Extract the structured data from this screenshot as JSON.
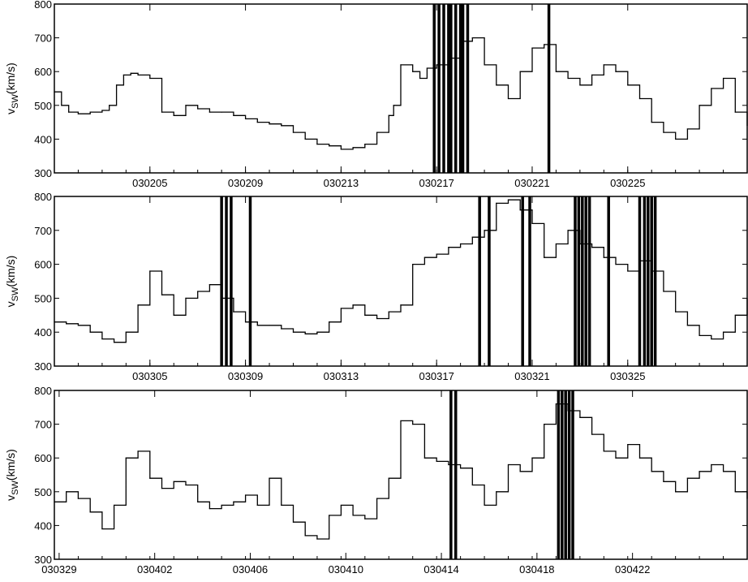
{
  "chart_data": [
    {
      "type": "line",
      "ylabel": "v_SW(km/s)",
      "ylabel_main": "v",
      "ylabel_sub": "SW",
      "ylabel_unit": "(km/s)",
      "ylim": [
        300,
        800
      ],
      "yticks": [
        300,
        400,
        500,
        600,
        700,
        800
      ],
      "x_range_days": [
        0,
        29
      ],
      "xtick_labels": [
        {
          "day": 4,
          "label": "030205"
        },
        {
          "day": 8,
          "label": "030209"
        },
        {
          "day": 12,
          "label": "030213"
        },
        {
          "day": 16,
          "label": "030217"
        },
        {
          "day": 20,
          "label": "030221"
        },
        {
          "day": 24,
          "label": "030225"
        }
      ],
      "series": [
        {
          "x": [
            0,
            0.3,
            0.6,
            1,
            1.5,
            2,
            2.3,
            2.6,
            2.9,
            3.2,
            3.5,
            4,
            4.5,
            5,
            5.5,
            6,
            6.5,
            7,
            7.5,
            8,
            8.5,
            9,
            9.5,
            10,
            10.5,
            11,
            11.5,
            12,
            12.5,
            13,
            13.5,
            14,
            14.2,
            14.5,
            15,
            15.3,
            15.6,
            16,
            16.5,
            17,
            17.5,
            18,
            18.5,
            19,
            19.5,
            20,
            20.5,
            21,
            21.5,
            22,
            22.5,
            23,
            23.5,
            24,
            24.5,
            25,
            25.5,
            26,
            26.5,
            27,
            27.5,
            28,
            28.5,
            29
          ],
          "y": [
            540,
            500,
            480,
            475,
            480,
            485,
            500,
            560,
            590,
            595,
            590,
            580,
            480,
            470,
            500,
            490,
            480,
            480,
            470,
            460,
            450,
            445,
            440,
            420,
            400,
            385,
            380,
            370,
            375,
            385,
            420,
            470,
            500,
            620,
            600,
            580,
            610,
            620,
            640,
            690,
            700,
            620,
            560,
            520,
            600,
            670,
            680,
            600,
            580,
            560,
            590,
            620,
            600,
            560,
            520,
            450,
            420,
            400,
            430,
            500,
            550,
            580,
            480,
            440
          ]
        }
      ],
      "events": [
        15.9,
        16.1,
        16.3,
        16.5,
        16.6,
        16.8,
        17.0,
        17.1,
        17.3,
        20.7
      ]
    },
    {
      "type": "line",
      "ylabel": "v_SW(km/s)",
      "ylabel_main": "v",
      "ylabel_sub": "SW",
      "ylabel_unit": "(km/s)",
      "ylim": [
        300,
        800
      ],
      "yticks": [
        300,
        400,
        500,
        600,
        700,
        800
      ],
      "x_range_days": [
        0,
        29
      ],
      "xtick_labels": [
        {
          "day": 4,
          "label": "030305"
        },
        {
          "day": 8,
          "label": "030309"
        },
        {
          "day": 12,
          "label": "030313"
        },
        {
          "day": 16,
          "label": "030317"
        },
        {
          "day": 20,
          "label": "030321"
        },
        {
          "day": 24,
          "label": "030325"
        }
      ],
      "series": [
        {
          "x": [
            0,
            0.5,
            1,
            1.5,
            2,
            2.5,
            3,
            3.5,
            4,
            4.5,
            5,
            5.5,
            6,
            6.5,
            7,
            7.5,
            8,
            8.5,
            9,
            9.5,
            10,
            10.5,
            11,
            11.5,
            12,
            12.5,
            13,
            13.5,
            14,
            14.5,
            15,
            15.5,
            16,
            16.5,
            17,
            17.5,
            18,
            18.5,
            19,
            19.5,
            20,
            20.5,
            21,
            21.5,
            22,
            22.5,
            23,
            23.5,
            24,
            24.5,
            25,
            25.5,
            26,
            26.5,
            27,
            27.5,
            28,
            28.5,
            29
          ],
          "y": [
            430,
            425,
            420,
            400,
            380,
            370,
            400,
            480,
            580,
            510,
            450,
            500,
            520,
            540,
            500,
            460,
            430,
            420,
            420,
            410,
            400,
            395,
            400,
            430,
            470,
            480,
            450,
            440,
            460,
            480,
            600,
            620,
            630,
            650,
            660,
            680,
            700,
            780,
            790,
            760,
            720,
            620,
            660,
            700,
            660,
            650,
            620,
            600,
            580,
            610,
            580,
            520,
            460,
            420,
            390,
            380,
            400,
            450,
            500
          ]
        }
      ],
      "events": [
        7.0,
        7.2,
        7.4,
        8.2,
        17.8,
        18.2,
        19.6,
        19.9,
        21.8,
        21.95,
        22.1,
        22.25,
        22.4,
        23.2,
        24.5,
        24.7,
        24.85,
        25.0,
        25.15
      ]
    },
    {
      "type": "line",
      "ylabel": "v_SW(km/s)",
      "ylabel_main": "v",
      "ylabel_sub": "SW",
      "ylabel_unit": "(km/s)",
      "ylim": [
        300,
        800
      ],
      "yticks": [
        300,
        400,
        500,
        600,
        700,
        800
      ],
      "x_range_days": [
        0,
        29
      ],
      "xtick_labels": [
        {
          "day": 0.2,
          "label": "030329"
        },
        {
          "day": 4.2,
          "label": "030402"
        },
        {
          "day": 8.2,
          "label": "030406"
        },
        {
          "day": 12.2,
          "label": "030410"
        },
        {
          "day": 16.2,
          "label": "030414"
        },
        {
          "day": 20.2,
          "label": "030418"
        },
        {
          "day": 24.2,
          "label": "030422"
        }
      ],
      "series": [
        {
          "x": [
            0,
            0.5,
            1,
            1.5,
            2,
            2.5,
            3,
            3.5,
            4,
            4.5,
            5,
            5.5,
            6,
            6.5,
            7,
            7.5,
            8,
            8.5,
            9,
            9.5,
            10,
            10.5,
            11,
            11.5,
            12,
            12.5,
            13,
            13.5,
            14,
            14.5,
            15,
            15.5,
            16,
            16.5,
            17,
            17.5,
            18,
            18.5,
            19,
            19.5,
            20,
            20.5,
            21,
            21.5,
            22,
            22.5,
            23,
            23.5,
            24,
            24.5,
            25,
            25.5,
            26,
            26.5,
            27,
            27.5,
            28,
            28.5,
            29
          ],
          "y": [
            470,
            500,
            480,
            440,
            390,
            460,
            600,
            620,
            540,
            510,
            530,
            520,
            470,
            450,
            460,
            470,
            490,
            460,
            540,
            460,
            410,
            370,
            360,
            430,
            460,
            430,
            420,
            480,
            540,
            710,
            700,
            600,
            590,
            580,
            570,
            520,
            460,
            500,
            580,
            560,
            600,
            700,
            760,
            740,
            720,
            670,
            620,
            600,
            640,
            600,
            560,
            530,
            500,
            540,
            560,
            580,
            560,
            500,
            480
          ]
        }
      ],
      "events": [
        16.6,
        16.8,
        21.1,
        21.25,
        21.4,
        21.55,
        21.7
      ]
    }
  ]
}
